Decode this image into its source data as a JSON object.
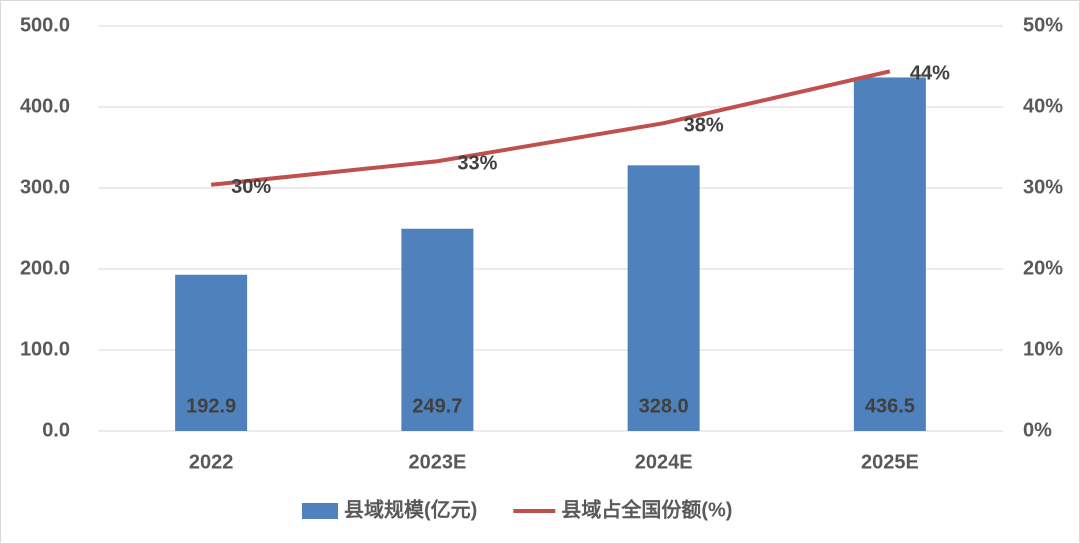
{
  "chart_data": {
    "type": "bar",
    "categories": [
      "2022",
      "2023E",
      "2024E",
      "2025E"
    ],
    "series": [
      {
        "name": "县域规模(亿元)",
        "type": "bar",
        "color": "#4f81bd",
        "values": [
          192.9,
          249.7,
          328.0,
          436.5
        ],
        "value_labels": [
          "192.9",
          "249.7",
          "328.0",
          "436.5"
        ]
      },
      {
        "name": "县域占全国份额(%)",
        "type": "line",
        "axis": "y2",
        "color": "#c0504d",
        "values": [
          30.4,
          33.3,
          38.0,
          44.4
        ],
        "value_labels": [
          "30%",
          "33%",
          "38%",
          "44%"
        ]
      }
    ],
    "ylim": [
      0,
      500
    ],
    "yticks": [
      {
        "value": 0,
        "label": "0.0"
      },
      {
        "value": 100,
        "label": "100.0"
      },
      {
        "value": 200,
        "label": "200.0"
      },
      {
        "value": 300,
        "label": "300.0"
      },
      {
        "value": 400,
        "label": "400.0"
      },
      {
        "value": 500,
        "label": "500.0"
      }
    ],
    "y2lim": [
      0,
      50
    ],
    "y2ticks": [
      {
        "value": 0,
        "label": "0%"
      },
      {
        "value": 10,
        "label": "10%"
      },
      {
        "value": 20,
        "label": "20%"
      },
      {
        "value": 30,
        "label": "30%"
      },
      {
        "value": 40,
        "label": "40%"
      },
      {
        "value": 50,
        "label": "50%"
      }
    ],
    "grid": true,
    "legend": "bottom"
  }
}
